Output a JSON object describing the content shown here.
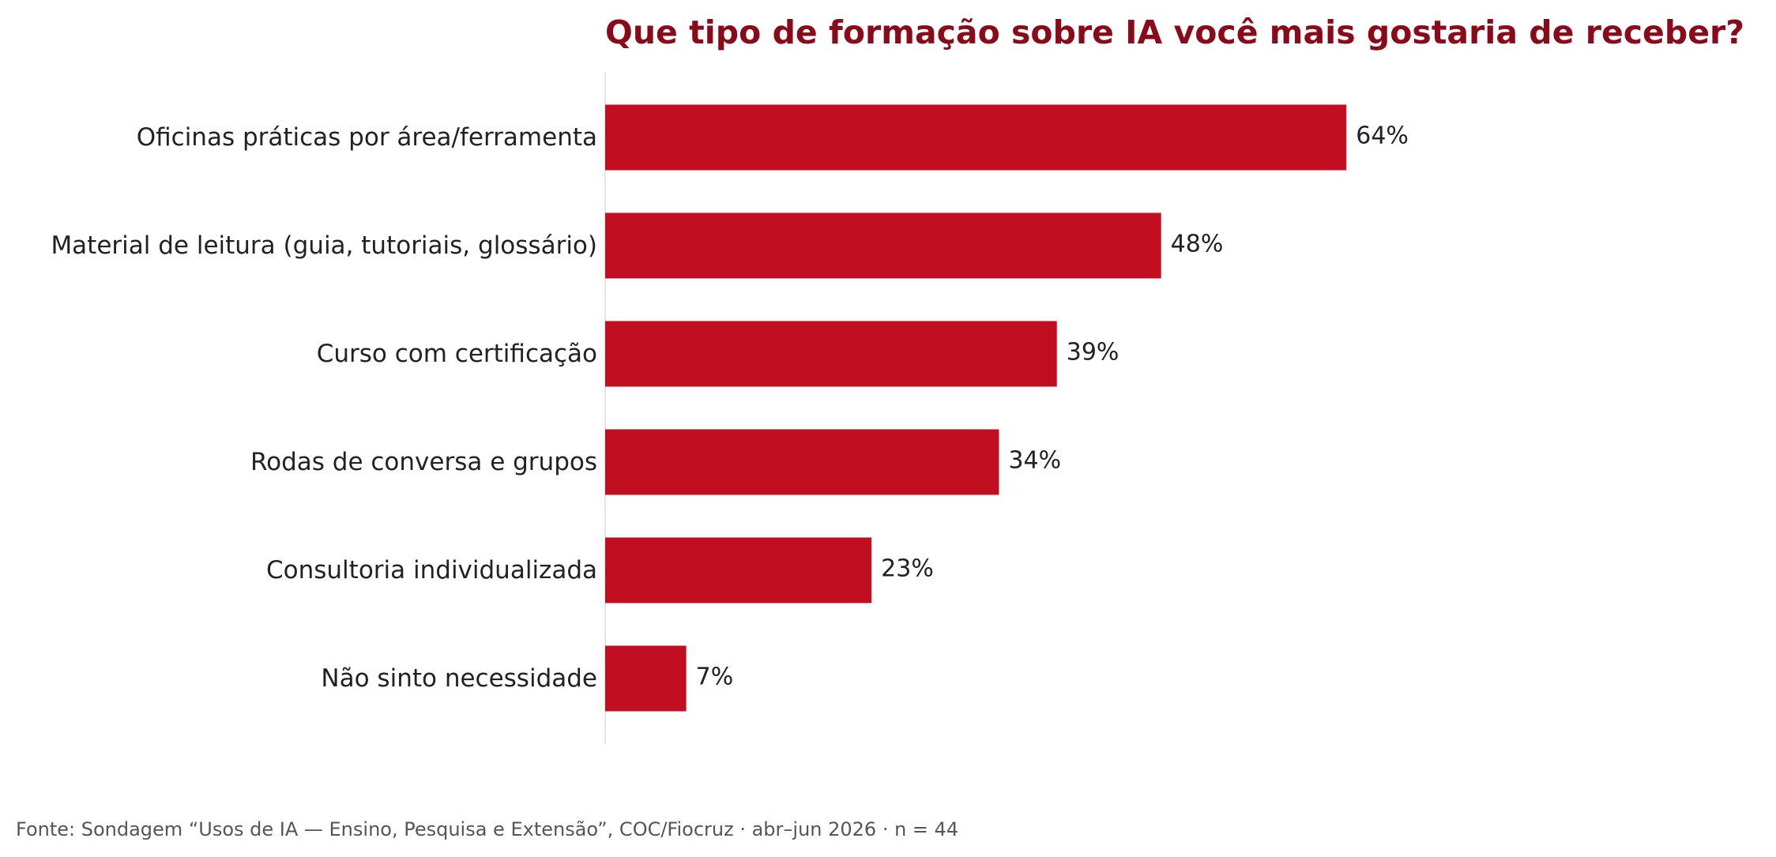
{
  "chart_data": {
    "type": "bar",
    "orientation": "horizontal",
    "title": "Que tipo de formação sobre IA você mais gostaria de receber?",
    "categories": [
      "Oficinas práticas por área/ferramenta",
      "Material de leitura (guia, tutoriais, glossário)",
      "Curso com certificação",
      "Rodas de conversa e grupos",
      "Consultoria individualizada",
      "Não sinto necessidade"
    ],
    "values": [
      64,
      48,
      39,
      34,
      23,
      7
    ],
    "value_labels": [
      "64%",
      "48%",
      "39%",
      "34%",
      "23%",
      "7%"
    ],
    "unit": "%",
    "xlim": [
      0,
      100
    ],
    "grid": false,
    "legend": "none",
    "xlabel": "",
    "ylabel": ""
  },
  "colors": {
    "bar": "#c20e21",
    "title": "#8b0a1a",
    "text": "#222222",
    "axis": "#dddddd",
    "source": "#555555"
  },
  "source_note": "Fonte: Sondagem “Usos de IA — Ensino, Pesquisa e Extensão”, COC/Fiocruz · abr–jun 2026 · n = 44"
}
